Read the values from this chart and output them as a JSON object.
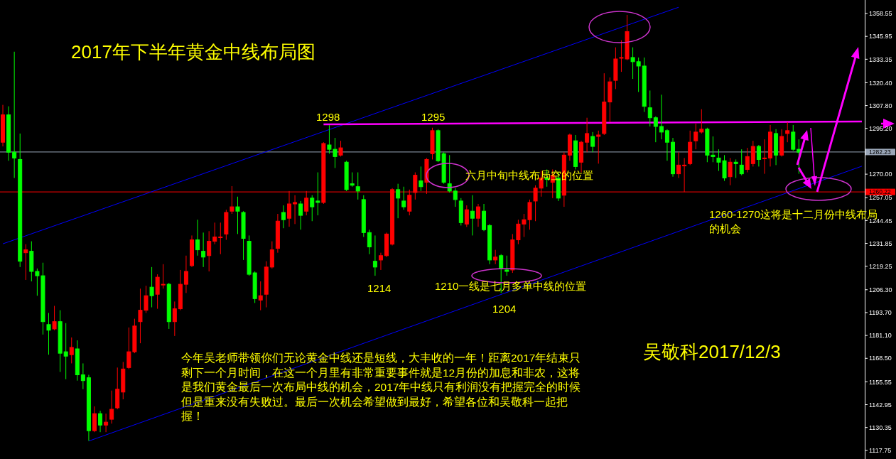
{
  "chart_data": {
    "type": "candlestick",
    "title": "2017年下半年黄金中线布局图",
    "categories": [
      null,
      null,
      null,
      null,
      null,
      null,
      null,
      null,
      null,
      null,
      null,
      null,
      null,
      null,
      null,
      null,
      null,
      null,
      null,
      null,
      null,
      null,
      null,
      null,
      null,
      null,
      null,
      null,
      null,
      null,
      null,
      null,
      null,
      null,
      null,
      null,
      null,
      null,
      null,
      null,
      null,
      null,
      null,
      null,
      null,
      null,
      null,
      null,
      null,
      null,
      null,
      null,
      null,
      null,
      null,
      null,
      null,
      null,
      null,
      null,
      null,
      null,
      null,
      null,
      null,
      null,
      null,
      null,
      null,
      null,
      null,
      null,
      null,
      null,
      null,
      null,
      null,
      null,
      null,
      null,
      null,
      null,
      null,
      null,
      null,
      null,
      null,
      null,
      null,
      null,
      null,
      null,
      null,
      null,
      null,
      null,
      null,
      null,
      null,
      null,
      null,
      null,
      null,
      null,
      null,
      null,
      null,
      null,
      null,
      null,
      null,
      null,
      null,
      null,
      null,
      null,
      null,
      null,
      null,
      null,
      null,
      null,
      null,
      null,
      null,
      null,
      null,
      null,
      null,
      null,
      null,
      null,
      null,
      null,
      null,
      null,
      null,
      null,
      null,
      null,
      null,
      null,
      null,
      null,
      null,
      null,
      null,
      null,
      null,
      null,
      null
    ],
    "ohlc": [
      [
        1287.6,
        1308.2,
        1285.3,
        1302.7
      ],
      [
        1302.7,
        1307.4,
        1277.4,
        1282.1
      ],
      [
        1282.1,
        1337.5,
        1267.9,
        1278.9
      ],
      [
        1278.1,
        1292.4,
        1218.8,
        1222.0
      ],
      [
        1226.7,
        1231.4,
        1211.7,
        1228.3
      ],
      [
        1227.5,
        1233.0,
        1210.9,
        1216.4
      ],
      [
        1216.4,
        1218.0,
        1203.0,
        1214.0
      ],
      [
        1214.0,
        1221.2,
        1181.6,
        1188.7
      ],
      [
        1187.1,
        1193.5,
        1170.5,
        1184.0
      ],
      [
        1184.7,
        1197.4,
        1184.0,
        1188.7
      ],
      [
        1188.7,
        1195.0,
        1161.0,
        1171.3
      ],
      [
        1172.1,
        1187.9,
        1157.0,
        1169.7
      ],
      [
        1170.5,
        1180.0,
        1165.7,
        1174.5
      ],
      [
        1173.7,
        1178.4,
        1156.2,
        1159.4
      ],
      [
        1159.4,
        1165.7,
        1151.5,
        1156.2
      ],
      [
        1157.8,
        1159.4,
        1123.0,
        1128.6
      ],
      [
        1128.6,
        1142.0,
        1127.8,
        1138.0
      ],
      [
        1138.0,
        1139.6,
        1127.8,
        1131.7
      ],
      [
        1131.7,
        1138.0,
        1127.8,
        1133.3
      ],
      [
        1134.9,
        1150.7,
        1132.5,
        1140.4
      ],
      [
        1141.2,
        1163.4,
        1140.4,
        1151.5
      ],
      [
        1149.9,
        1166.5,
        1145.9,
        1162.6
      ],
      [
        1163.4,
        1185.5,
        1162.6,
        1172.1
      ],
      [
        1172.1,
        1190.3,
        1171.3,
        1186.3
      ],
      [
        1188.7,
        1206.9,
        1176.8,
        1195.0
      ],
      [
        1195.0,
        1208.5,
        1193.5,
        1203.0
      ],
      [
        1207.7,
        1218.8,
        1196.6,
        1203.0
      ],
      [
        1203.8,
        1214.8,
        1195.8,
        1213.2
      ],
      [
        1209.3,
        1220.4,
        1206.9,
        1209.3
      ],
      [
        1209.3,
        1210.1,
        1184.7,
        1188.7
      ],
      [
        1188.7,
        1199.8,
        1180.8,
        1195.8
      ],
      [
        1195.8,
        1217.2,
        1195.0,
        1209.3
      ],
      [
        1209.3,
        1225.1,
        1204.5,
        1216.4
      ],
      [
        1219.6,
        1236.2,
        1218.8,
        1233.8
      ],
      [
        1233.8,
        1244.9,
        1225.1,
        1228.3
      ],
      [
        1227.5,
        1237.8,
        1218.8,
        1224.3
      ],
      [
        1225.1,
        1238.6,
        1216.4,
        1233.0
      ],
      [
        1233.0,
        1243.3,
        1231.4,
        1235.4
      ],
      [
        1235.4,
        1243.3,
        1225.9,
        1235.4
      ],
      [
        1237.0,
        1250.4,
        1233.8,
        1248.9
      ],
      [
        1249.6,
        1263.4,
        1248.1,
        1252.0
      ],
      [
        1252.0,
        1257.6,
        1237.0,
        1249.6
      ],
      [
        1248.9,
        1249.6,
        1222.7,
        1234.6
      ],
      [
        1233.0,
        1236.2,
        1214.0,
        1214.8
      ],
      [
        1215.6,
        1216.4,
        1199.0,
        1201.4
      ],
      [
        1200.6,
        1210.9,
        1195.0,
        1203.0
      ],
      [
        1203.8,
        1222.0,
        1196.6,
        1218.8
      ],
      [
        1218.8,
        1233.0,
        1218.0,
        1228.3
      ],
      [
        1229.1,
        1248.1,
        1226.7,
        1244.1
      ],
      [
        1248.9,
        1252.8,
        1240.2,
        1244.9
      ],
      [
        1245.7,
        1260.7,
        1241.0,
        1253.6
      ],
      [
        1253.6,
        1258.4,
        1242.5,
        1254.4
      ],
      [
        1253.6,
        1255.2,
        1239.4,
        1247.3
      ],
      [
        1249.6,
        1260.7,
        1247.3,
        1256.8
      ],
      [
        1256.8,
        1258.4,
        1244.1,
        1252.0
      ],
      [
        1255.2,
        1271.0,
        1247.3,
        1254.4
      ],
      [
        1254.4,
        1287.6,
        1253.6,
        1286.9
      ],
      [
        1286.1,
        1297.0,
        1281.3,
        1283.7
      ],
      [
        1283.7,
        1290.0,
        1273.4,
        1279.7
      ],
      [
        1280.5,
        1288.4,
        1279.7,
        1284.5
      ],
      [
        1276.6,
        1277.4,
        1260.7,
        1261.5
      ],
      [
        1264.7,
        1271.0,
        1263.1,
        1263.9
      ],
      [
        1263.1,
        1271.0,
        1256.0,
        1260.7
      ],
      [
        1256.0,
        1258.4,
        1235.4,
        1237.8
      ],
      [
        1237.8,
        1239.4,
        1225.9,
        1229.9
      ],
      [
        1222.0,
        1236.2,
        1214.0,
        1218.8
      ],
      [
        1222.7,
        1226.7,
        1217.2,
        1225.1
      ],
      [
        1225.1,
        1237.8,
        1224.3,
        1237.0
      ],
      [
        1231.4,
        1262.3,
        1230.7,
        1261.5
      ],
      [
        1261.5,
        1264.7,
        1245.7,
        1256.8
      ],
      [
        1255.2,
        1263.1,
        1250.4,
        1252.0
      ],
      [
        1249.6,
        1261.5,
        1247.3,
        1258.4
      ],
      [
        1259.9,
        1271.0,
        1256.0,
        1269.4
      ],
      [
        1266.3,
        1274.2,
        1260.7,
        1263.1
      ],
      [
        1265.5,
        1278.9,
        1259.1,
        1278.1
      ],
      [
        1281.3,
        1295.6,
        1278.1,
        1294.0
      ],
      [
        1294.0,
        1294.8,
        1276.6,
        1277.4
      ],
      [
        1281.3,
        1282.1,
        1264.7,
        1265.5
      ],
      [
        1264.7,
        1280.5,
        1259.9,
        1260.7
      ],
      [
        1260.7,
        1262.3,
        1252.0,
        1256.0
      ],
      [
        1255.2,
        1256.8,
        1241.7,
        1243.3
      ],
      [
        1242.5,
        1252.8,
        1240.9,
        1250.4
      ],
      [
        1249.6,
        1258.4,
        1236.2,
        1245.7
      ],
      [
        1245.7,
        1253.6,
        1241.0,
        1252.0
      ],
      [
        1249.6,
        1253.6,
        1238.6,
        1239.4
      ],
      [
        1241.7,
        1242.5,
        1220.4,
        1222.7
      ],
      [
        1222.7,
        1228.3,
        1220.4,
        1224.3
      ],
      [
        1225.1,
        1225.9,
        1204.5,
        1218.0
      ],
      [
        1217.2,
        1225.1,
        1214.0,
        1216.4
      ],
      [
        1217.2,
        1237.0,
        1215.6,
        1233.8
      ],
      [
        1233.8,
        1244.9,
        1231.4,
        1242.5
      ],
      [
        1242.5,
        1248.1,
        1235.4,
        1244.9
      ],
      [
        1244.9,
        1256.0,
        1239.4,
        1254.4
      ],
      [
        1255.2,
        1263.9,
        1244.1,
        1262.3
      ],
      [
        1262.3,
        1271.8,
        1257.6,
        1267.9
      ],
      [
        1267.9,
        1272.6,
        1263.1,
        1267.1
      ],
      [
        1265.5,
        1272.6,
        1256.8,
        1269.4
      ],
      [
        1267.9,
        1271.0,
        1255.2,
        1256.8
      ],
      [
        1258.4,
        1282.1,
        1252.0,
        1280.5
      ],
      [
        1280.5,
        1292.4,
        1277.4,
        1291.6
      ],
      [
        1288.4,
        1291.6,
        1272.6,
        1274.2
      ],
      [
        1276.6,
        1288.4,
        1271.0,
        1287.6
      ],
      [
        1287.6,
        1301.1,
        1282.1,
        1292.4
      ],
      [
        1290.8,
        1293.2,
        1282.1,
        1285.3
      ],
      [
        1290.8,
        1294.0,
        1275.8,
        1291.6
      ],
      [
        1292.4,
        1325.6,
        1291.6,
        1309.8
      ],
      [
        1309.8,
        1323.3,
        1298.7,
        1320.9
      ],
      [
        1321.7,
        1339.9,
        1316.9,
        1333.5
      ],
      [
        1334.3,
        1343.8,
        1326.4,
        1334.3
      ],
      [
        1333.5,
        1357.8,
        1332.8,
        1348.6
      ],
      [
        1334.3,
        1339.9,
        1322.5,
        1332.0
      ],
      [
        1332.0,
        1334.3,
        1315.3,
        1329.6
      ],
      [
        1329.6,
        1334.3,
        1304.3,
        1307.4
      ],
      [
        1306.6,
        1316.1,
        1296.3,
        1301.1
      ],
      [
        1301.1,
        1301.9,
        1287.6,
        1296.3
      ],
      [
        1296.3,
        1313.8,
        1289.2,
        1293.2
      ],
      [
        1294.0,
        1294.8,
        1277.4,
        1287.6
      ],
      [
        1287.6,
        1290.0,
        1268.6,
        1270.2
      ],
      [
        1270.2,
        1282.1,
        1267.9,
        1275.0
      ],
      [
        1275.0,
        1278.9,
        1260.2,
        1275.0
      ],
      [
        1275.8,
        1294.0,
        1275.0,
        1287.6
      ],
      [
        1288.4,
        1297.9,
        1283.7,
        1293.2
      ],
      [
        1293.2,
        1305.8,
        1292.4,
        1294.8
      ],
      [
        1294.8,
        1295.6,
        1276.6,
        1280.5
      ],
      [
        1280.5,
        1290.8,
        1276.6,
        1279.7
      ],
      [
        1278.9,
        1283.7,
        1271.8,
        1276.6
      ],
      [
        1277.4,
        1280.5,
        1266.3,
        1267.9
      ],
      [
        1268.6,
        1278.9,
        1263.9,
        1276.6
      ],
      [
        1276.6,
        1278.1,
        1267.9,
        1275.8
      ],
      [
        1275.0,
        1283.7,
        1269.4,
        1270.2
      ],
      [
        1272.6,
        1284.5,
        1271.0,
        1279.7
      ],
      [
        1275.8,
        1288.4,
        1274.2,
        1285.3
      ],
      [
        1285.3,
        1286.1,
        1274.2,
        1278.1
      ],
      [
        1278.9,
        1289.2,
        1270.2,
        1278.9
      ],
      [
        1278.9,
        1297.1,
        1274.2,
        1293.2
      ],
      [
        1292.4,
        1294.8,
        1275.0,
        1280.5
      ],
      [
        1280.5,
        1294.8,
        1279.7,
        1290.8
      ],
      [
        1292.4,
        1298.7,
        1287.6,
        1294.0
      ],
      [
        1293.2,
        1297.1,
        1282.9,
        1283.7
      ],
      [
        1283.7,
        1289.2,
        1270.2,
        1282.1
      ],
      null,
      null,
      null,
      null,
      null,
      null,
      null,
      null,
      null,
      null,
      null
    ],
    "colors": [
      "#ff0000",
      "#00ff00",
      "#00ff00",
      "#00ff00",
      "#ff0000",
      "#00ff00",
      "#00ff00",
      "#00ff00",
      "#00ff00",
      "#ff0000",
      "#00ff00",
      "#00ff00",
      "#ff0000",
      "#00ff00",
      "#00ff00",
      "#00ff00",
      "#ff0000",
      "#00ff00",
      "#ff0000",
      "#ff0000",
      "#ff0000",
      "#ff0000",
      "#ff0000",
      "#ff0000",
      "#ff0000",
      "#ff0000",
      "#00ff00",
      "#ff0000",
      "#ff0000",
      "#00ff00",
      "#ff0000",
      "#ff0000",
      "#ff0000",
      "#ff0000",
      "#00ff00",
      "#00ff00",
      "#ff0000",
      "#ff0000",
      "#ff0000",
      "#ff0000",
      "#ff0000",
      "#00ff00",
      "#00ff00",
      "#00ff00",
      "#00ff00",
      "#ff0000",
      "#ff0000",
      "#ff0000",
      "#ff0000",
      "#00ff00",
      "#ff0000",
      "#ff0000",
      "#00ff00",
      "#ff0000",
      "#00ff00",
      "#00ff00",
      "#ff0000",
      "#00ff00",
      "#00ff00",
      "#ff0000",
      "#00ff00",
      "#00ff00",
      "#00ff00",
      "#00ff00",
      "#00ff00",
      "#00ff00",
      "#ff0000",
      "#ff0000",
      "#ff0000",
      "#00ff00",
      "#00ff00",
      "#ff0000",
      "#ff0000",
      "#00ff00",
      "#ff0000",
      "#ff0000",
      "#00ff00",
      "#00ff00",
      "#00ff00",
      "#00ff00",
      "#00ff00",
      "#ff0000",
      "#00ff00",
      "#ff0000",
      "#00ff00",
      "#00ff00",
      "#ff0000",
      "#00ff00",
      "#00ff00",
      "#ff0000",
      "#ff0000",
      "#ff0000",
      "#ff0000",
      "#ff0000",
      "#ff0000",
      "#00ff00",
      "#ff0000",
      "#00ff00",
      "#ff0000",
      "#ff0000",
      "#00ff00",
      "#ff0000",
      "#ff0000",
      "#00ff00",
      "#ff0000",
      "#ff0000",
      "#ff0000",
      "#ff0000",
      "#ff0000",
      "#ff0000",
      "#00ff00",
      "#00ff00",
      "#00ff00",
      "#00ff00",
      "#00ff00",
      "#00ff00",
      "#00ff00",
      "#00ff00",
      "#ff0000",
      "#ff0000",
      "#ff0000",
      "#ff0000",
      "#ff0000",
      "#00ff00",
      "#00ff00",
      "#00ff00",
      "#00ff00",
      "#ff0000",
      "#00ff00",
      "#00ff00",
      "#ff0000",
      "#ff0000",
      "#00ff00",
      "#ff0000",
      "#ff0000",
      "#00ff00",
      "#ff0000",
      "#ff0000",
      "#00ff00",
      "#00ff00",
      null,
      null,
      null,
      null,
      null,
      null,
      null,
      null,
      null,
      null,
      null
    ],
    "series": [
      {
        "type": "line",
        "color": "#0000ff",
        "values": [
          1231.6,
          null,
          null,
          null,
          null,
          null,
          null,
          null,
          null,
          null,
          null,
          null,
          null,
          null,
          null,
          null,
          null,
          null,
          null,
          null,
          null,
          null,
          null,
          null,
          null,
          null,
          null,
          null,
          null,
          null,
          null,
          null,
          null,
          null,
          null,
          null,
          null,
          null,
          null,
          null,
          null,
          null,
          null,
          null,
          null,
          null,
          null,
          null,
          null,
          null,
          null,
          null,
          null,
          null,
          null,
          null,
          null,
          null,
          null,
          null,
          null,
          null,
          null,
          null,
          null,
          null,
          null,
          null,
          null,
          null,
          null,
          null,
          null,
          null,
          null,
          null,
          null,
          null,
          null,
          null,
          null,
          null,
          null,
          null,
          null,
          null,
          null,
          null,
          null,
          null,
          null,
          null,
          null,
          null,
          null,
          null,
          null,
          null,
          null,
          null,
          null,
          null,
          null,
          null,
          null,
          null,
          null,
          null,
          null,
          null,
          null,
          null,
          null,
          null,
          null,
          null,
          null,
          null,
          1362.0,
          null,
          null,
          null,
          null,
          null,
          null,
          null,
          null,
          null,
          null,
          null,
          null,
          null,
          null,
          null,
          null,
          null,
          null,
          null,
          null,
          null,
          null,
          null,
          null,
          null,
          null,
          null,
          null,
          null,
          null,
          null,
          null
        ]
      },
      {
        "type": "line",
        "color": "#0000ff",
        "values": [
          null,
          null,
          null,
          null,
          null,
          null,
          null,
          null,
          null,
          null,
          null,
          null,
          null,
          null,
          null,
          1122.9,
          null,
          null,
          null,
          null,
          null,
          null,
          null,
          null,
          null,
          null,
          null,
          null,
          null,
          null,
          null,
          null,
          null,
          null,
          null,
          null,
          null,
          null,
          null,
          null,
          null,
          null,
          null,
          null,
          null,
          null,
          null,
          null,
          null,
          null,
          null,
          null,
          null,
          null,
          null,
          null,
          null,
          null,
          null,
          null,
          null,
          null,
          null,
          null,
          null,
          null,
          null,
          null,
          null,
          null,
          null,
          null,
          null,
          null,
          null,
          null,
          null,
          null,
          null,
          null,
          null,
          null,
          null,
          null,
          null,
          null,
          null,
          null,
          null,
          null,
          null,
          null,
          null,
          null,
          null,
          null,
          null,
          null,
          null,
          null,
          null,
          null,
          null,
          null,
          null,
          null,
          null,
          null,
          null,
          null,
          null,
          null,
          null,
          null,
          null,
          null,
          null,
          null,
          null,
          null,
          null,
          null,
          null,
          null,
          null,
          null,
          null,
          null,
          null,
          null,
          null,
          null,
          null,
          null,
          null,
          null,
          null,
          null,
          null,
          null,
          null,
          null,
          null,
          null,
          null,
          null,
          null,
          null,
          null,
          null,
          1274.4
        ]
      },
      {
        "type": "line",
        "color": "#ff00ff",
        "values": [
          null,
          null,
          null,
          null,
          null,
          null,
          null,
          null,
          null,
          null,
          null,
          null,
          null,
          null,
          null,
          null,
          null,
          null,
          null,
          null,
          null,
          null,
          null,
          null,
          null,
          null,
          null,
          null,
          null,
          null,
          null,
          null,
          null,
          null,
          null,
          null,
          null,
          null,
          null,
          null,
          null,
          null,
          null,
          null,
          null,
          null,
          null,
          null,
          null,
          null,
          null,
          null,
          null,
          null,
          null,
          null,
          1297.5,
          null,
          null,
          null,
          null,
          null,
          null,
          null,
          null,
          null,
          null,
          null,
          null,
          null,
          null,
          null,
          null,
          null,
          null,
          null,
          null,
          null,
          null,
          null,
          null,
          null,
          null,
          null,
          null,
          null,
          null,
          null,
          null,
          null,
          null,
          null,
          null,
          null,
          null,
          null,
          null,
          null,
          null,
          null,
          null,
          null,
          null,
          null,
          null,
          null,
          null,
          null,
          null,
          null,
          null,
          null,
          null,
          null,
          null,
          null,
          null,
          null,
          null,
          null,
          null,
          null,
          null,
          null,
          null,
          null,
          null,
          null,
          null,
          null,
          null,
          null,
          null,
          null,
          null,
          null,
          null,
          null,
          null,
          null,
          null,
          null,
          null,
          null,
          null,
          null,
          null,
          null,
          null,
          null,
          1299.0
        ]
      }
    ],
    "ylim": [
      1113,
      1366
    ],
    "yticks": [
      1358.55,
      1345.95,
      1333.35,
      {
        "value": 1320.4,
        "label": "1320.40"
      },
      {
        "value": 1307.8,
        "label": "1307.80"
      },
      {
        "value": 1295.2,
        "label": "1295.20"
      },
      {
        "value": 1270.0,
        "label": "1270.00"
      },
      1257.05,
      1244.45,
      1231.85,
      1219.25,
      {
        "value": 1206.3,
        "label": "1206.30"
      },
      {
        "value": 1193.7,
        "label": "1193.70"
      },
      {
        "value": 1181.1,
        "label": "1181.10"
      },
      {
        "value": 1168.5,
        "label": "1168.50"
      },
      1155.55,
      1142.95,
      1130.35,
      1117.75
    ],
    "ref_lines": [
      {
        "axis": "y",
        "value": 1282.23,
        "label": "1282.23",
        "color": "#9aa6b8"
      },
      {
        "axis": "y",
        "value": 1260.22,
        "label": "1260.22",
        "color": "#ff0000"
      }
    ],
    "tick_labels": "y",
    "annotations": [
      "1298",
      "1295",
      "1214",
      "1204",
      "六月中旬中线布局空的位置",
      "1210一线是七月多单中线的位置",
      "1260-1270这将是十二月份中线布局的机会",
      "今年吴老师带领你们无论黄金中线还是短线，大丰收的一年！距离2017年结束只剩下一个月时间，在这一个月里有非常重要事件就是12月份的加息和非农，这将是我们黄金最后一次布局中线的机会，2017年中线只有利润没有把握完全的时候但是重来没有失败过。最后一次机会希望做到最好，希望各位和吴敬科一起把握！",
      "吴敬科2017/12/3"
    ]
  }
}
